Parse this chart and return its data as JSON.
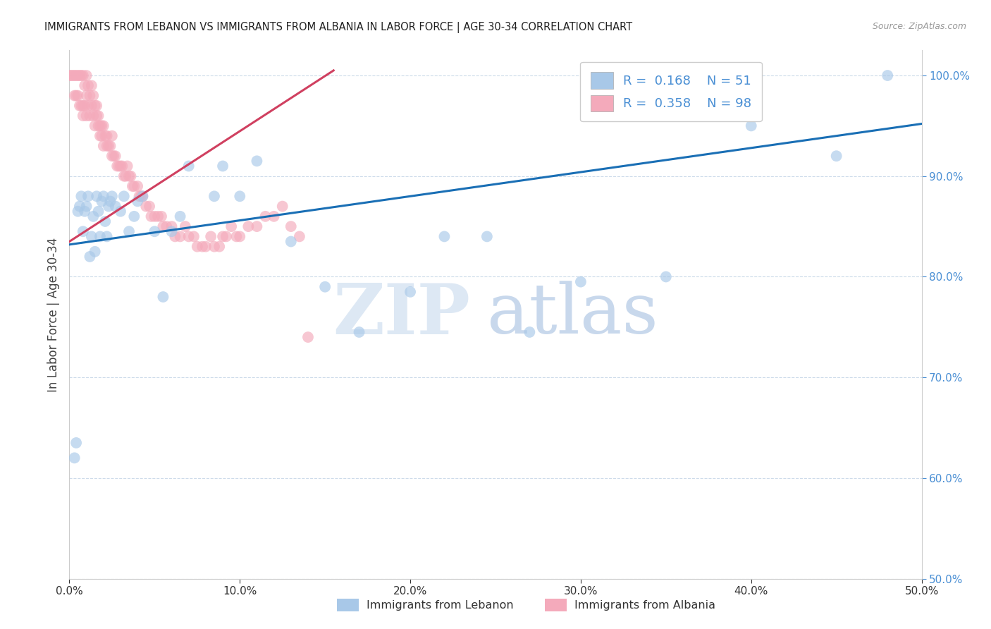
{
  "title": "IMMIGRANTS FROM LEBANON VS IMMIGRANTS FROM ALBANIA IN LABOR FORCE | AGE 30-34 CORRELATION CHART",
  "source": "Source: ZipAtlas.com",
  "ylabel": "In Labor Force | Age 30-34",
  "xmin": 0.0,
  "xmax": 0.5,
  "ymin": 0.5,
  "ymax": 1.025,
  "yticks": [
    0.5,
    0.6,
    0.7,
    0.8,
    0.9,
    1.0
  ],
  "ytick_labels": [
    "50.0%",
    "60.0%",
    "70.0%",
    "80.0%",
    "90.0%",
    "100.0%"
  ],
  "xticks": [
    0.0,
    0.1,
    0.2,
    0.3,
    0.4,
    0.5
  ],
  "xtick_labels": [
    "0.0%",
    "10.0%",
    "20.0%",
    "30.0%",
    "40.0%",
    "50.0%"
  ],
  "legend_r1": "R =  0.168",
  "legend_n1": "N = 51",
  "legend_r2": "R =  0.358",
  "legend_n2": "N = 98",
  "color_lebanon": "#a8c8e8",
  "color_albania": "#f4aabb",
  "trend_color_lebanon": "#1a6fb5",
  "trend_color_albania": "#d04060",
  "leb_trend_x": [
    0.0,
    0.5
  ],
  "leb_trend_y": [
    0.832,
    0.952
  ],
  "alb_trend_x": [
    0.0,
    0.155
  ],
  "alb_trend_y": [
    0.835,
    1.005
  ],
  "lebanon_x": [
    0.003,
    0.004,
    0.005,
    0.006,
    0.007,
    0.008,
    0.009,
    0.01,
    0.011,
    0.012,
    0.013,
    0.014,
    0.015,
    0.016,
    0.017,
    0.018,
    0.019,
    0.02,
    0.021,
    0.022,
    0.023,
    0.024,
    0.025,
    0.027,
    0.03,
    0.032,
    0.035,
    0.038,
    0.04,
    0.043,
    0.05,
    0.055,
    0.06,
    0.065,
    0.07,
    0.085,
    0.09,
    0.1,
    0.11,
    0.13,
    0.15,
    0.17,
    0.2,
    0.22,
    0.245,
    0.27,
    0.3,
    0.35,
    0.4,
    0.45,
    0.48
  ],
  "lebanon_y": [
    0.62,
    0.635,
    0.865,
    0.87,
    0.88,
    0.845,
    0.865,
    0.87,
    0.88,
    0.82,
    0.84,
    0.86,
    0.825,
    0.88,
    0.865,
    0.84,
    0.875,
    0.88,
    0.855,
    0.84,
    0.87,
    0.875,
    0.88,
    0.87,
    0.865,
    0.88,
    0.845,
    0.86,
    0.875,
    0.88,
    0.845,
    0.78,
    0.845,
    0.86,
    0.91,
    0.88,
    0.91,
    0.88,
    0.915,
    0.835,
    0.79,
    0.745,
    0.785,
    0.84,
    0.84,
    0.745,
    0.795,
    0.8,
    0.95,
    0.92,
    1.0
  ],
  "albania_x": [
    0.0,
    0.001,
    0.002,
    0.003,
    0.003,
    0.004,
    0.004,
    0.005,
    0.005,
    0.006,
    0.006,
    0.007,
    0.007,
    0.008,
    0.008,
    0.008,
    0.009,
    0.009,
    0.01,
    0.01,
    0.01,
    0.011,
    0.011,
    0.012,
    0.012,
    0.013,
    0.013,
    0.014,
    0.014,
    0.015,
    0.015,
    0.016,
    0.016,
    0.017,
    0.017,
    0.018,
    0.018,
    0.019,
    0.019,
    0.02,
    0.02,
    0.021,
    0.022,
    0.022,
    0.023,
    0.024,
    0.025,
    0.025,
    0.026,
    0.027,
    0.028,
    0.029,
    0.03,
    0.031,
    0.032,
    0.033,
    0.034,
    0.035,
    0.036,
    0.037,
    0.038,
    0.04,
    0.041,
    0.042,
    0.043,
    0.045,
    0.047,
    0.048,
    0.05,
    0.052,
    0.054,
    0.055,
    0.057,
    0.06,
    0.062,
    0.065,
    0.068,
    0.07,
    0.073,
    0.075,
    0.078,
    0.08,
    0.083,
    0.085,
    0.088,
    0.09,
    0.092,
    0.095,
    0.098,
    0.1,
    0.105,
    0.11,
    0.115,
    0.12,
    0.125,
    0.13,
    0.135,
    0.14
  ],
  "albania_y": [
    1.0,
    1.0,
    1.0,
    1.0,
    0.98,
    1.0,
    0.98,
    1.0,
    0.98,
    1.0,
    0.97,
    1.0,
    0.97,
    1.0,
    0.97,
    0.96,
    0.99,
    0.97,
    1.0,
    0.98,
    0.96,
    0.99,
    0.97,
    0.98,
    0.96,
    0.99,
    0.97,
    0.98,
    0.96,
    0.97,
    0.95,
    0.97,
    0.96,
    0.96,
    0.95,
    0.95,
    0.94,
    0.95,
    0.94,
    0.95,
    0.93,
    0.94,
    0.94,
    0.93,
    0.93,
    0.93,
    0.94,
    0.92,
    0.92,
    0.92,
    0.91,
    0.91,
    0.91,
    0.91,
    0.9,
    0.9,
    0.91,
    0.9,
    0.9,
    0.89,
    0.89,
    0.89,
    0.88,
    0.88,
    0.88,
    0.87,
    0.87,
    0.86,
    0.86,
    0.86,
    0.86,
    0.85,
    0.85,
    0.85,
    0.84,
    0.84,
    0.85,
    0.84,
    0.84,
    0.83,
    0.83,
    0.83,
    0.84,
    0.83,
    0.83,
    0.84,
    0.84,
    0.85,
    0.84,
    0.84,
    0.85,
    0.85,
    0.86,
    0.86,
    0.87,
    0.85,
    0.84,
    0.74
  ]
}
